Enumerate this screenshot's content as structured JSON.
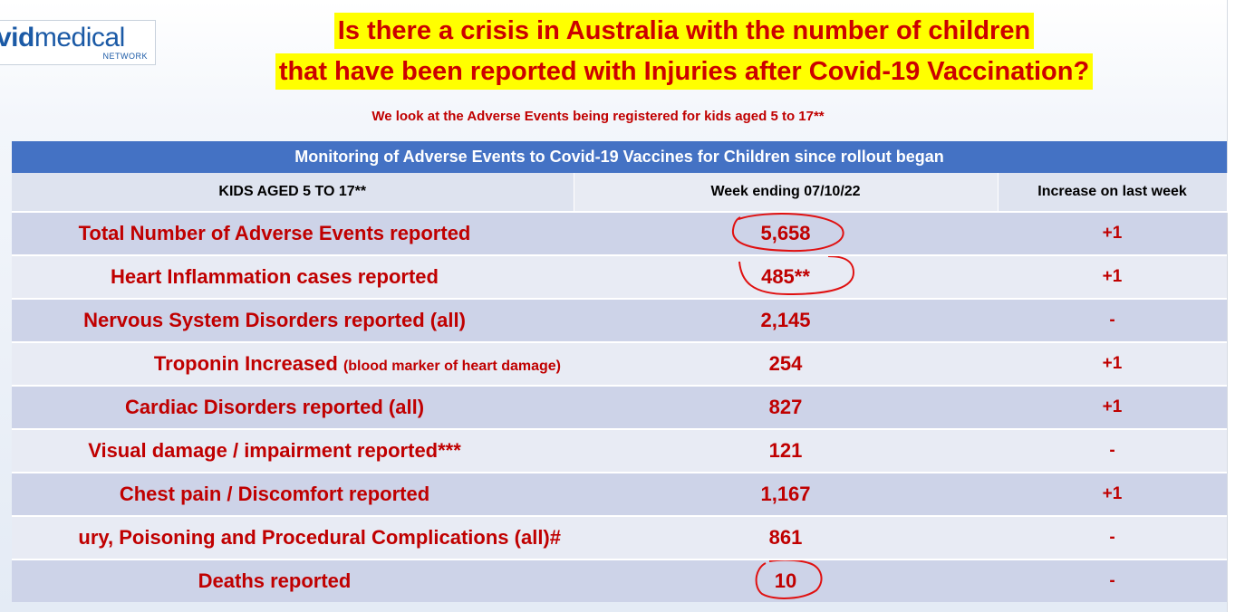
{
  "logo": {
    "main_bold": "vid",
    "main_light": "medical",
    "sub": "NETWORK"
  },
  "title": {
    "line1": "Is there a crisis in Australia with the number of children",
    "line2": "that have been reported with Injuries after Covid-19 Vaccination?"
  },
  "subtitle": "We look at the Adverse Events being registered for kids aged 5 to 17**",
  "table": {
    "banner": "Monitoring of Adverse Events to Covid-19 Vaccines for Children since rollout began",
    "headers": [
      "KIDS AGED 5 TO 17**",
      "Week ending 07/10/22",
      "Increase on last week"
    ],
    "rows": [
      {
        "label": "Total Number of Adverse Events reported",
        "note": "",
        "value": "5,658",
        "increase": "+1"
      },
      {
        "label": "Heart Inflammation cases reported",
        "note": "",
        "value": "485**",
        "increase": "+1"
      },
      {
        "label": "Nervous System Disorders reported (all)",
        "note": "",
        "value": "2,145",
        "increase": "-"
      },
      {
        "label": "Troponin Increased ",
        "note": "(blood marker of heart damage)",
        "value": "254",
        "increase": "+1"
      },
      {
        "label": "Cardiac Disorders reported (all)",
        "note": "",
        "value": "827",
        "increase": "+1"
      },
      {
        "label": "Visual damage / impairment reported***",
        "note": "",
        "value": "121",
        "increase": "-"
      },
      {
        "label": "Chest pain / Discomfort reported",
        "note": "",
        "value": "1,167",
        "increase": "+1"
      },
      {
        "label": "ury, Poisoning and Procedural Complications (all)#",
        "note": "",
        "value": "861",
        "increase": "-"
      },
      {
        "label": "Deaths reported",
        "note": "",
        "value": "10",
        "increase": "-"
      }
    ]
  },
  "colors": {
    "title_highlight": "#ffff00",
    "title_text": "#cc0000",
    "banner": "#4472c4",
    "row_text": "#c00000",
    "annotation_circle": "#e01010"
  }
}
